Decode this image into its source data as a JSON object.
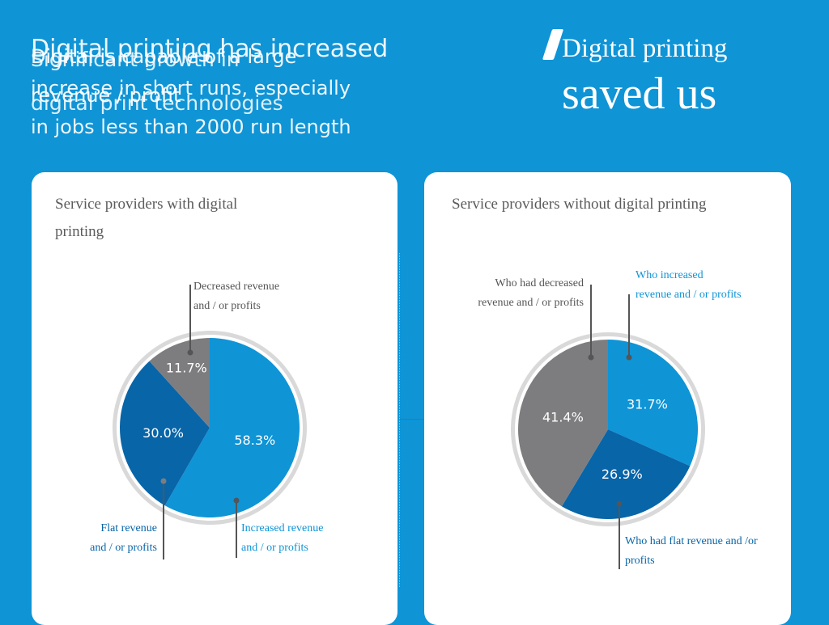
{
  "header": {
    "headline_lines": [
      "Digital printing has increased",
      "increase in short runs, especially",
      "in jobs less than 2000 run length"
    ],
    "overlay_lines_b": [
      "Significant growth in",
      "digital print technologies"
    ],
    "overlay_lines_c": [
      "Digital is capable of a large",
      "revenue / profit"
    ],
    "quote_line1": "Digital printing",
    "quote_line2": "saved us"
  },
  "colors": {
    "background": "#0f94d6",
    "increased": "#0f94d6",
    "flat": "#0865a8",
    "decreased": "#7d7d7f",
    "panel": "#ffffff"
  },
  "chart_data": [
    {
      "type": "pie",
      "title": "Service providers with digital printing",
      "slices": [
        {
          "label": "Increased revenue and / or profits",
          "value": 58.3,
          "display": "58.3%",
          "color": "#0f94d6"
        },
        {
          "label": "Flat revenue and / or profits",
          "value": 30.0,
          "display": "30.0%",
          "color": "#0865a8"
        },
        {
          "label": "Decreased revenue and / or profits",
          "value": 11.7,
          "display": "11.7%",
          "color": "#7d7d7f"
        }
      ]
    },
    {
      "type": "pie",
      "title": "Service providers without digital printing",
      "slices": [
        {
          "label": "Who increased revenue and / or profits",
          "value": 31.7,
          "display": "31.7%",
          "color": "#0f94d6"
        },
        {
          "label": "Who had flat revenue and /or profits",
          "value": 26.9,
          "display": "26.9%",
          "color": "#0865a8"
        },
        {
          "label": "Who had decreased revenue and / or profits",
          "value": 41.4,
          "display": "41.4%",
          "color": "#7d7d7f"
        }
      ]
    }
  ],
  "callouts": {
    "left": {
      "decreased": [
        "Decreased revenue",
        "and / or profits"
      ],
      "flat": [
        "Flat revenue",
        "and / or profits"
      ],
      "increased": [
        "Increased revenue",
        "and / or profits"
      ]
    },
    "right": {
      "decreased": [
        "Who had decreased",
        "revenue and / or profits"
      ],
      "increased": [
        "Who increased",
        "revenue and / or profits"
      ],
      "flat": [
        "Who had flat revenue and /or",
        "profits"
      ]
    }
  }
}
